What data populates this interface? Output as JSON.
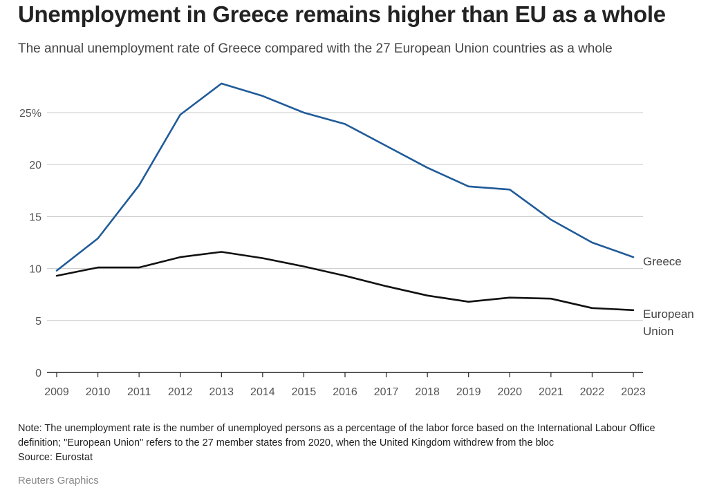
{
  "chart_data": {
    "type": "line",
    "title": "Unemployment in Greece remains higher than EU as a whole",
    "subtitle": "The annual unemployment rate of Greece compared with the 27 European Union countries as a whole",
    "x": [
      "2009",
      "2010",
      "2011",
      "2012",
      "2013",
      "2014",
      "2015",
      "2016",
      "2017",
      "2018",
      "2019",
      "2020",
      "2021",
      "2022",
      "2023"
    ],
    "series": [
      {
        "name": "Greece",
        "label_lines": [
          "Greece"
        ],
        "color": "#1f5b99",
        "values": [
          9.8,
          12.9,
          18.0,
          24.8,
          27.8,
          26.6,
          25.0,
          23.9,
          21.8,
          19.7,
          17.9,
          17.6,
          14.7,
          12.5,
          11.1
        ]
      },
      {
        "name": "European Union",
        "label_lines": [
          "European",
          "Union"
        ],
        "color": "#111111",
        "values": [
          9.3,
          10.1,
          10.1,
          11.1,
          11.6,
          11.0,
          10.2,
          9.3,
          8.3,
          7.4,
          6.8,
          7.2,
          7.1,
          6.2,
          6.0
        ]
      }
    ],
    "y_ticks": [
      {
        "value": 0,
        "label": "0"
      },
      {
        "value": 5,
        "label": "5"
      },
      {
        "value": 10,
        "label": "10"
      },
      {
        "value": 15,
        "label": "15"
      },
      {
        "value": 20,
        "label": "20"
      },
      {
        "value": 25,
        "label": "25%"
      }
    ],
    "ylim": [
      0,
      28
    ],
    "xlabel": "",
    "ylabel": "",
    "grid": true,
    "note": "Note: The unemployment rate is the number of unemployed persons as a percentage of the labor force based on the International Labour Office definition; \"European Union\" refers to the 27 member states from 2020, when the United Kingdom withdrew from the bloc",
    "source": "Source: Eurostat",
    "credit": "Reuters Graphics"
  }
}
